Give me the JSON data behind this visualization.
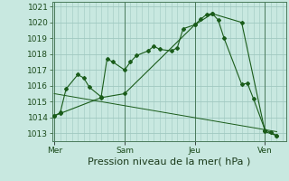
{
  "bg_color": "#c8e8e0",
  "grid_color": "#a0c8c0",
  "line_color": "#1a5c1a",
  "marker_color": "#1a5c1a",
  "xlabel": "Pression niveau de la mer( hPa )",
  "xlabel_fontsize": 8,
  "tick_fontsize": 6.5,
  "ylim": [
    1012.5,
    1021.3
  ],
  "yticks": [
    1013,
    1014,
    1015,
    1016,
    1017,
    1018,
    1019,
    1020,
    1021
  ],
  "xlim": [
    -0.1,
    9.9
  ],
  "day_ticks": [
    0.0,
    3.0,
    6.0,
    9.0
  ],
  "day_labels": [
    "Mer",
    "Sam",
    "Jeu",
    "Ven"
  ],
  "series1_x": [
    0.0,
    0.25,
    0.5,
    1.0,
    1.25,
    1.5,
    2.0,
    2.25,
    2.5,
    3.0,
    3.25,
    3.5,
    4.0,
    4.25,
    4.5,
    5.0,
    5.25,
    5.5,
    6.0,
    6.25,
    6.5,
    6.75,
    7.0,
    7.25,
    8.0,
    8.25,
    8.5,
    9.0,
    9.25,
    9.5
  ],
  "series1_y": [
    1014.1,
    1014.3,
    1015.8,
    1016.7,
    1016.5,
    1015.9,
    1015.3,
    1017.7,
    1017.5,
    1017.0,
    1017.5,
    1017.9,
    1018.2,
    1018.5,
    1018.3,
    1018.2,
    1018.4,
    1019.6,
    1019.85,
    1020.2,
    1020.5,
    1020.55,
    1020.15,
    1019.0,
    1016.1,
    1016.15,
    1015.2,
    1013.2,
    1013.05,
    1012.85
  ],
  "series2_x": [
    0.0,
    0.25,
    2.0,
    3.0,
    6.0,
    6.75,
    8.0,
    9.0,
    9.5
  ],
  "series2_y": [
    1014.1,
    1014.25,
    1015.25,
    1015.5,
    1019.85,
    1020.55,
    1020.0,
    1013.1,
    1012.85
  ],
  "series3_x": [
    0.0,
    9.5
  ],
  "series3_y": [
    1015.5,
    1013.1
  ]
}
